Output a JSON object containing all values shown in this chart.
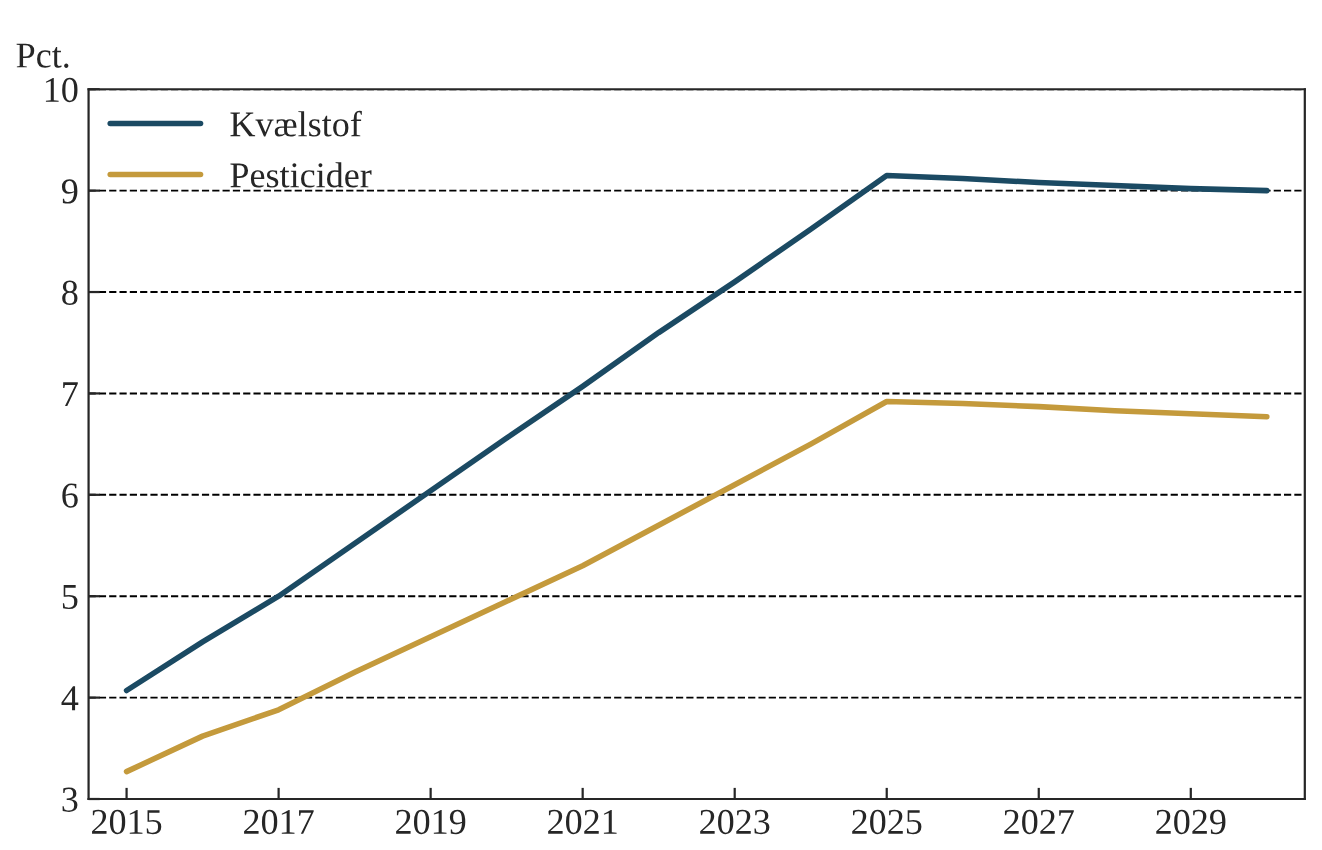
{
  "chart_data": {
    "type": "line",
    "ylabel": "Pct.",
    "x": [
      2015,
      2016,
      2017,
      2018,
      2019,
      2020,
      2021,
      2022,
      2023,
      2024,
      2025,
      2026,
      2027,
      2028,
      2029,
      2030
    ],
    "series": [
      {
        "name": "Kvælstof",
        "color": "#1b4a63",
        "values": [
          4.07,
          4.55,
          5.0,
          5.52,
          6.04,
          6.56,
          7.07,
          7.6,
          8.1,
          8.62,
          9.15,
          9.12,
          9.08,
          9.05,
          9.02,
          9.0
        ]
      },
      {
        "name": "Pesticider",
        "color": "#c49a3c",
        "values": [
          3.27,
          3.62,
          3.88,
          4.25,
          4.6,
          4.95,
          5.3,
          5.7,
          6.1,
          6.5,
          6.92,
          6.9,
          6.87,
          6.83,
          6.8,
          6.77
        ]
      }
    ],
    "xlim": [
      2014.5,
      2030.5
    ],
    "xticks": [
      2015,
      2017,
      2019,
      2021,
      2023,
      2025,
      2027,
      2029
    ],
    "ylim": [
      3,
      10
    ],
    "yticks": [
      3,
      4,
      5,
      6,
      7,
      8,
      9,
      10
    ],
    "grid": "y",
    "legend": "top left",
    "line_style": "solid",
    "marker": "none"
  }
}
